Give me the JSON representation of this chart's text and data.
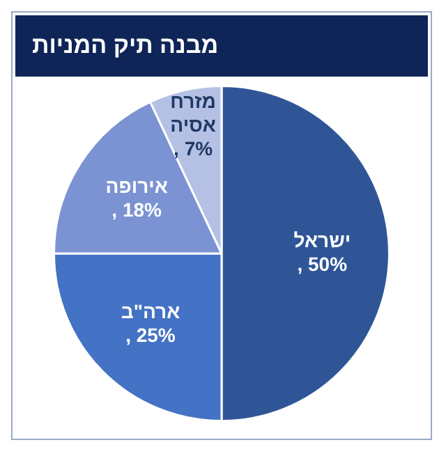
{
  "chart_data": {
    "type": "pie",
    "title": "מבנה תיק המניות",
    "categories": [
      "ישראל",
      "ארה\"ב",
      "אירופה",
      "מזרח אסיה"
    ],
    "values": [
      50,
      25,
      18,
      7
    ],
    "colors": [
      "#2f5597",
      "#4472c4",
      "#7b93d2",
      "#b4c0e4"
    ],
    "value_labels": [
      ", 50%",
      ", 25%",
      ", 18%",
      ", 7%"
    ],
    "legend": false
  }
}
